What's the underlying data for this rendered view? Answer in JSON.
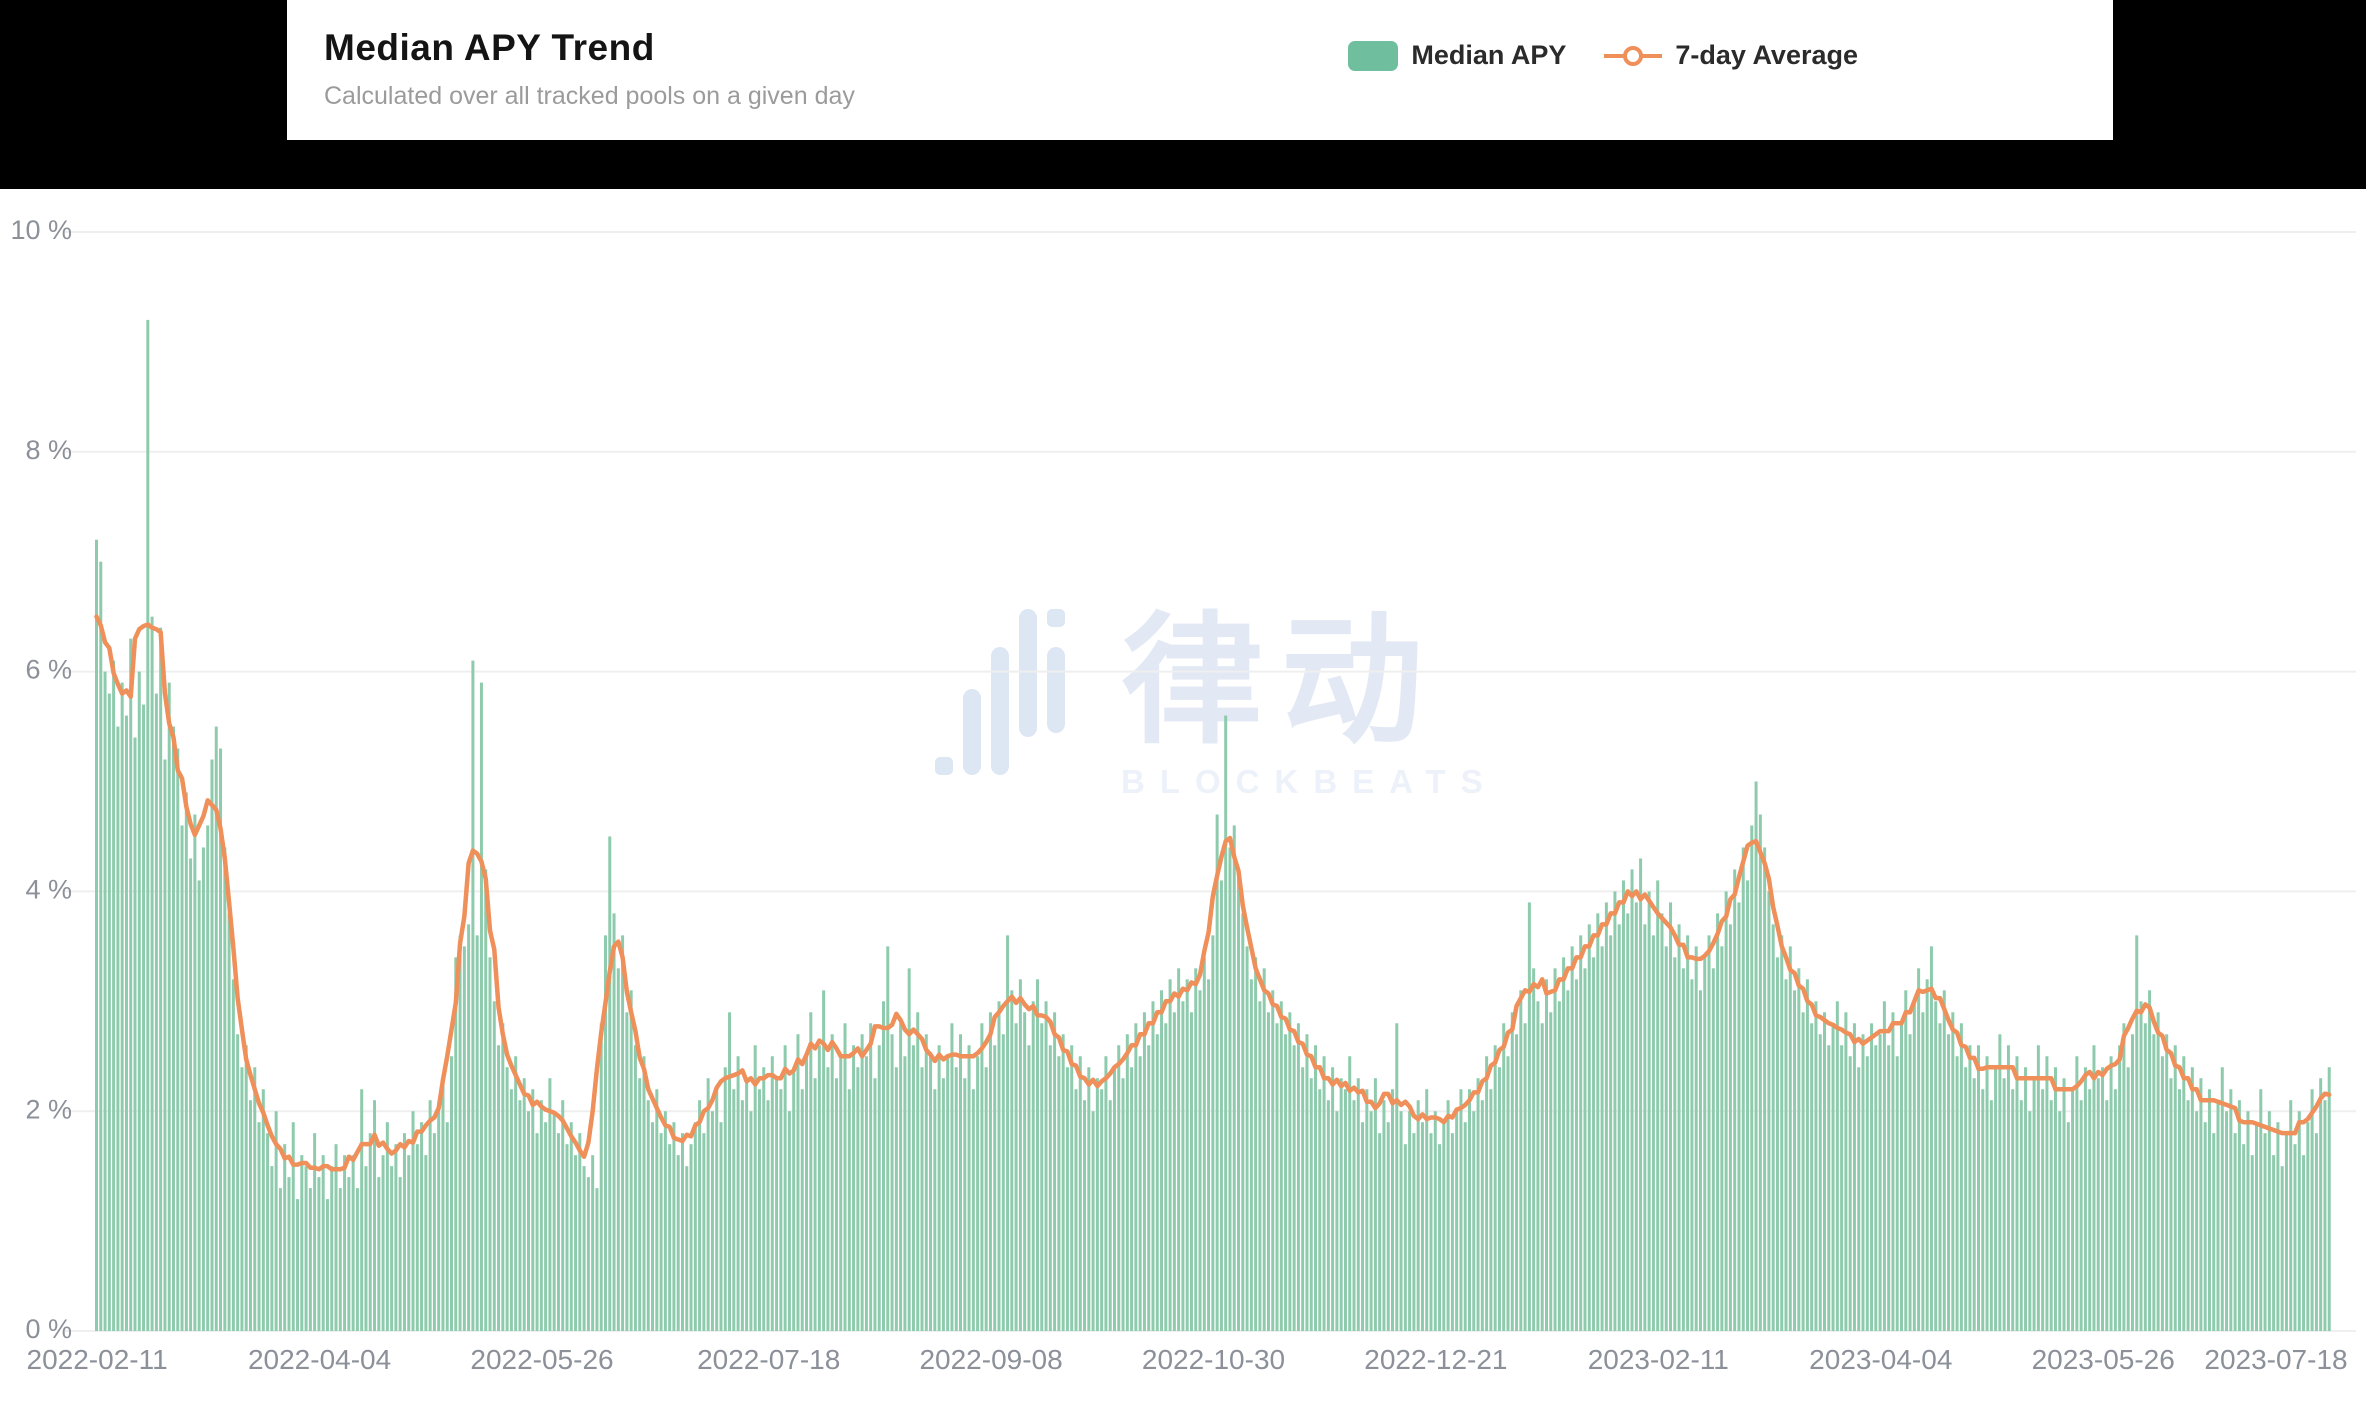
{
  "header": {
    "title": "Median APY Trend",
    "subtitle": "Calculated over all tracked pools on a given day"
  },
  "legend": {
    "items": [
      {
        "label": "Median APY",
        "type": "bar",
        "color": "#6fbf9e"
      },
      {
        "label": "7-day Average",
        "type": "line",
        "color": "#ef8f5a"
      }
    ]
  },
  "watermark": {
    "cjk": "律动",
    "latin": "BLOCKBEATS"
  },
  "colors": {
    "bar": "#8ecbad",
    "line": "#ef8f5a",
    "grid": "#efefef",
    "axis_label": "#8b9099",
    "band": "#000000"
  },
  "chart_data": {
    "type": "bar",
    "title": "Median APY Trend",
    "subtitle": "Calculated over all tracked pools on a given day",
    "xlabel": "",
    "ylabel": "",
    "ylim": [
      0,
      10
    ],
    "grid": "horizontal",
    "legend_position": "top-right",
    "y_ticks": [
      "0 %",
      "2 %",
      "4 %",
      "6 %",
      "8 %",
      "10 %"
    ],
    "x_tick_labels": [
      "2022-02-11",
      "2022-04-04",
      "2022-05-26",
      "2022-07-18",
      "2022-09-08",
      "2022-10-30",
      "2022-12-21",
      "2023-02-11",
      "2023-04-04",
      "2023-05-26",
      "2023-07-18"
    ],
    "x_tick_day_index": [
      0,
      52,
      104,
      157,
      209,
      261,
      313,
      365,
      417,
      469,
      522
    ],
    "series": [
      {
        "name": "Median APY",
        "type": "bar",
        "color": "#8ecbad",
        "unit": "%",
        "values": [
          7.2,
          7.0,
          6.0,
          5.8,
          6.1,
          5.5,
          5.9,
          5.6,
          6.3,
          5.4,
          6.0,
          5.7,
          9.2,
          6.5,
          5.8,
          6.4,
          5.2,
          5.9,
          5.5,
          5.3,
          4.6,
          4.9,
          4.3,
          4.7,
          4.1,
          4.4,
          4.6,
          5.2,
          5.5,
          5.3,
          4.4,
          3.8,
          3.2,
          2.7,
          2.4,
          2.6,
          2.1,
          2.4,
          1.9,
          2.2,
          1.8,
          1.5,
          2.0,
          1.3,
          1.7,
          1.4,
          1.9,
          1.2,
          1.6,
          1.5,
          1.3,
          1.8,
          1.4,
          1.6,
          1.2,
          1.5,
          1.7,
          1.3,
          1.6,
          1.4,
          1.6,
          1.3,
          2.2,
          1.5,
          1.8,
          2.1,
          1.4,
          1.6,
          1.9,
          1.5,
          1.7,
          1.4,
          1.8,
          1.6,
          2.0,
          1.7,
          1.9,
          1.6,
          2.1,
          1.8,
          2.0,
          2.3,
          1.9,
          2.5,
          3.4,
          3.6,
          3.5,
          3.7,
          6.1,
          3.6,
          5.9,
          4.2,
          3.4,
          3.0,
          2.6,
          2.8,
          2.4,
          2.2,
          2.5,
          2.1,
          2.3,
          2.0,
          2.2,
          1.8,
          2.1,
          1.9,
          2.3,
          2.0,
          1.8,
          2.1,
          1.7,
          1.9,
          1.6,
          1.8,
          1.5,
          1.4,
          1.6,
          1.3,
          2.8,
          3.6,
          4.5,
          3.8,
          3.3,
          3.6,
          2.9,
          3.1,
          2.6,
          2.3,
          2.5,
          2.1,
          1.9,
          2.2,
          1.8,
          2.0,
          1.7,
          1.9,
          1.6,
          1.8,
          1.5,
          1.7,
          1.9,
          2.1,
          1.8,
          2.3,
          2.0,
          2.2,
          1.9,
          2.4,
          2.9,
          2.2,
          2.5,
          2.1,
          2.3,
          2.0,
          2.6,
          2.2,
          2.4,
          2.1,
          2.5,
          2.3,
          2.2,
          2.6,
          2.0,
          2.4,
          2.7,
          2.2,
          2.5,
          2.9,
          2.3,
          2.6,
          3.1,
          2.4,
          2.7,
          2.3,
          2.5,
          2.8,
          2.2,
          2.6,
          2.4,
          2.7,
          2.5,
          2.8,
          2.3,
          2.6,
          3.0,
          3.5,
          2.7,
          2.4,
          2.8,
          2.5,
          3.3,
          2.6,
          2.9,
          2.4,
          2.7,
          2.5,
          2.2,
          2.6,
          2.3,
          2.5,
          2.8,
          2.4,
          2.7,
          2.3,
          2.6,
          2.2,
          2.5,
          2.8,
          2.4,
          2.9,
          2.6,
          3.0,
          2.7,
          3.6,
          3.1,
          2.8,
          3.2,
          2.9,
          2.6,
          3.0,
          3.2,
          2.8,
          3.0,
          2.6,
          2.9,
          2.5,
          2.7,
          2.4,
          2.6,
          2.2,
          2.5,
          2.1,
          2.4,
          2.0,
          2.3,
          2.2,
          2.5,
          2.1,
          2.4,
          2.6,
          2.3,
          2.7,
          2.4,
          2.8,
          2.5,
          2.9,
          2.6,
          3.0,
          2.7,
          3.1,
          2.8,
          3.2,
          2.9,
          3.3,
          3.0,
          3.2,
          2.9,
          3.3,
          3.1,
          3.4,
          3.2,
          3.6,
          4.7,
          4.1,
          5.6,
          4.4,
          4.6,
          4.2,
          3.8,
          3.5,
          3.2,
          3.4,
          3.0,
          3.3,
          2.9,
          3.1,
          2.8,
          3.0,
          2.7,
          2.9,
          2.6,
          2.8,
          2.4,
          2.7,
          2.3,
          2.6,
          2.2,
          2.5,
          2.1,
          2.4,
          2.0,
          2.3,
          2.2,
          2.5,
          2.1,
          2.3,
          1.9,
          2.2,
          2.0,
          2.3,
          1.8,
          2.1,
          1.9,
          2.2,
          2.8,
          2.0,
          1.7,
          2.0,
          1.8,
          2.1,
          1.9,
          2.2,
          1.8,
          2.0,
          1.7,
          1.9,
          2.1,
          1.8,
          2.0,
          2.2,
          1.9,
          2.2,
          2.0,
          2.3,
          2.1,
          2.5,
          2.2,
          2.6,
          2.4,
          2.8,
          2.5,
          2.9,
          2.7,
          3.1,
          2.8,
          3.9,
          3.3,
          3.0,
          2.8,
          3.2,
          2.9,
          3.3,
          3.0,
          3.4,
          3.1,
          3.5,
          3.2,
          3.6,
          3.3,
          3.7,
          3.4,
          3.8,
          3.5,
          3.9,
          3.6,
          4.0,
          3.7,
          4.1,
          3.8,
          4.2,
          3.9,
          4.3,
          3.7,
          4.0,
          3.6,
          4.1,
          3.8,
          3.5,
          3.9,
          3.4,
          3.7,
          3.3,
          3.6,
          3.2,
          3.5,
          3.1,
          3.4,
          3.6,
          3.3,
          3.8,
          3.5,
          4.0,
          3.7,
          4.2,
          3.9,
          4.4,
          4.1,
          4.6,
          5.0,
          4.7,
          4.4,
          4.0,
          3.7,
          3.4,
          3.6,
          3.2,
          3.5,
          3.1,
          3.3,
          2.9,
          3.2,
          2.8,
          3.0,
          2.7,
          2.9,
          2.6,
          2.8,
          3.0,
          2.6,
          2.9,
          2.5,
          2.8,
          2.4,
          2.7,
          2.5,
          2.8,
          2.6,
          2.7,
          3.0,
          2.6,
          2.9,
          2.5,
          2.8,
          3.1,
          2.7,
          3.0,
          3.3,
          2.9,
          3.2,
          3.5,
          3.0,
          2.8,
          3.1,
          2.7,
          2.9,
          2.5,
          2.8,
          2.4,
          2.6,
          2.3,
          2.6,
          2.2,
          2.5,
          2.1,
          2.4,
          2.7,
          2.3,
          2.6,
          2.2,
          2.5,
          2.1,
          2.4,
          2.0,
          2.3,
          2.6,
          2.2,
          2.5,
          2.1,
          2.4,
          2.0,
          2.3,
          1.9,
          2.2,
          2.5,
          2.1,
          2.4,
          2.2,
          2.6,
          2.3,
          2.4,
          2.1,
          2.5,
          2.2,
          2.6,
          2.8,
          2.4,
          2.7,
          3.6,
          3.0,
          2.8,
          3.1,
          2.7,
          2.9,
          2.5,
          2.7,
          2.3,
          2.6,
          2.2,
          2.5,
          2.1,
          2.4,
          2.0,
          2.3,
          1.9,
          2.2,
          1.8,
          2.1,
          2.4,
          2.0,
          2.2,
          1.8,
          2.1,
          1.7,
          2.0,
          1.6,
          1.9,
          2.2,
          1.8,
          2.0,
          1.6,
          1.9,
          1.5,
          1.8,
          2.1,
          1.7,
          2.0,
          1.6,
          1.9,
          2.2,
          1.8,
          2.3,
          2.1,
          2.4
        ]
      },
      {
        "name": "7-day Average",
        "type": "line",
        "color": "#ef8f5a",
        "derived": "7-day moving average of Median APY"
      }
    ]
  }
}
